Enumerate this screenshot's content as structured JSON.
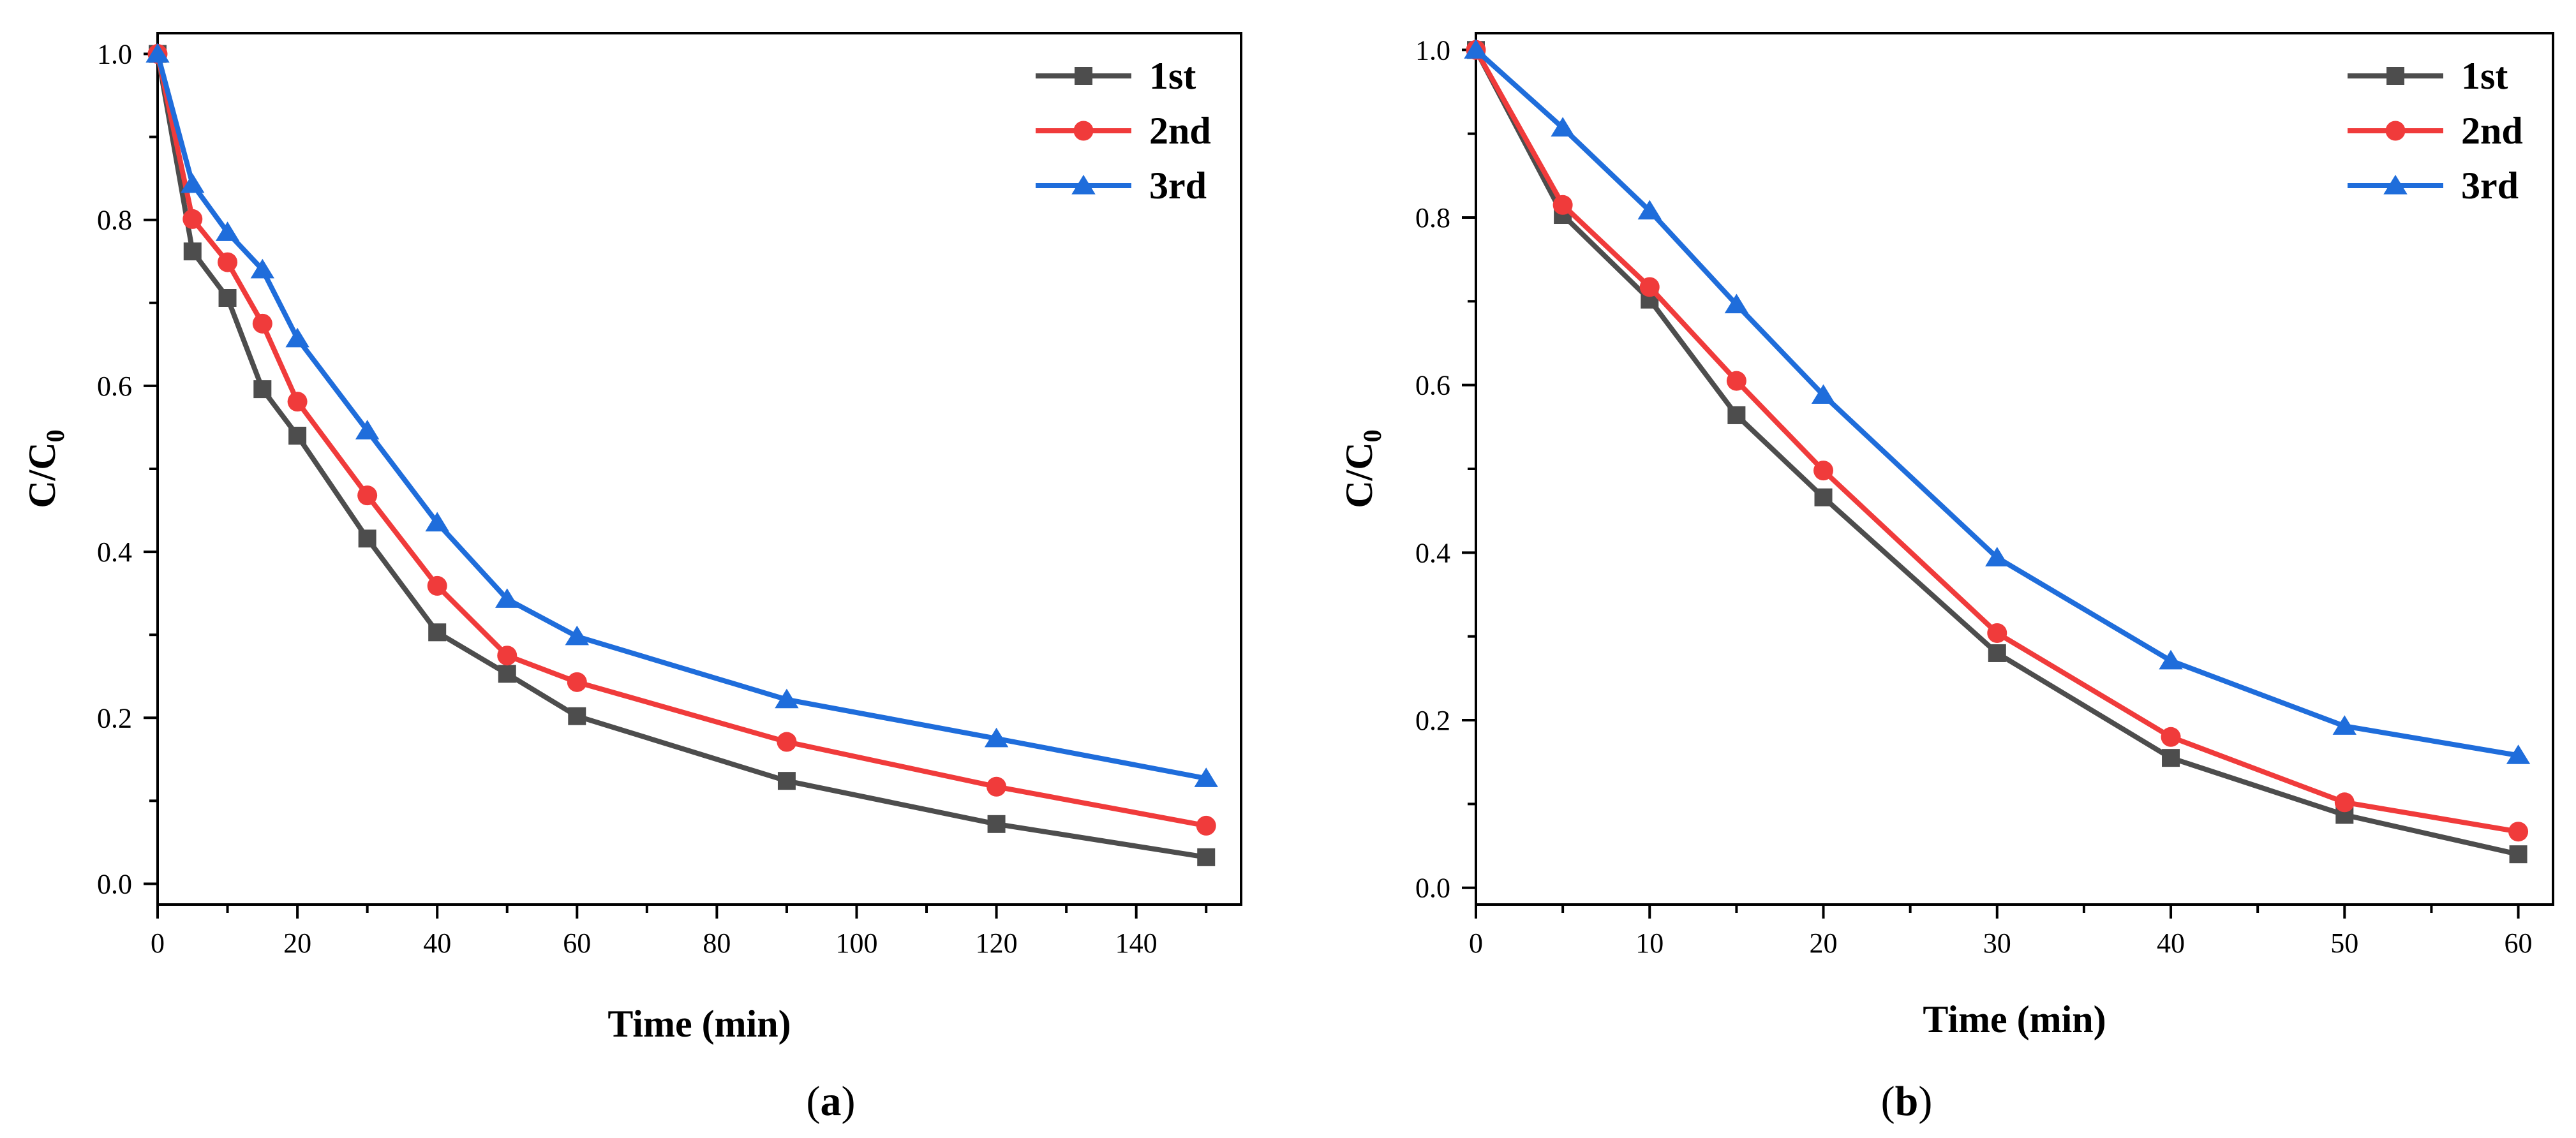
{
  "chart_data": [
    {
      "type": "line",
      "panel_label": "a",
      "xlabel": "Time (min)",
      "ylabel": "C/C",
      "ylabel_sub": "0",
      "xlim": [
        0,
        155
      ],
      "ylim": [
        -0.025,
        1.025
      ],
      "xticks": [
        0,
        20,
        40,
        60,
        80,
        100,
        120,
        140
      ],
      "yticks": [
        0.0,
        0.2,
        0.4,
        0.6,
        0.8,
        1.0
      ],
      "ytick_labels": [
        "0.0",
        "0.2",
        "0.4",
        "0.6",
        "0.8",
        "1.0"
      ],
      "x": [
        0,
        5,
        10,
        15,
        20,
        30,
        40,
        50,
        60,
        90,
        120,
        150
      ],
      "series": [
        {
          "name": "1st",
          "color": "#4d4d4d",
          "marker": "square",
          "values": [
            1.0,
            0.762,
            0.706,
            0.596,
            0.54,
            0.416,
            0.303,
            0.253,
            0.202,
            0.124,
            0.072,
            0.032
          ]
        },
        {
          "name": "2nd",
          "color": "#f03b3b",
          "marker": "circle",
          "values": [
            1.0,
            0.801,
            0.749,
            0.675,
            0.581,
            0.468,
            0.359,
            0.275,
            0.243,
            0.171,
            0.117,
            0.07
          ]
        },
        {
          "name": "3rd",
          "color": "#1f6ddb",
          "marker": "triangle",
          "values": [
            1.0,
            0.843,
            0.785,
            0.74,
            0.657,
            0.546,
            0.435,
            0.343,
            0.298,
            0.222,
            0.175,
            0.127
          ]
        }
      ],
      "legend": "top-right"
    },
    {
      "type": "line",
      "panel_label": "b",
      "xlabel": "Time (min)",
      "ylabel": "C/C",
      "ylabel_sub": "0",
      "xlim": [
        0,
        62
      ],
      "ylim": [
        -0.02,
        1.02
      ],
      "xticks": [
        0,
        10,
        20,
        30,
        40,
        50,
        60
      ],
      "yticks": [
        0.0,
        0.2,
        0.4,
        0.6,
        0.8,
        1.0
      ],
      "ytick_labels": [
        "0.0",
        "0.2",
        "0.4",
        "0.6",
        "0.8",
        "1.0"
      ],
      "x": [
        0,
        5,
        10,
        15,
        20,
        30,
        40,
        50,
        60
      ],
      "series": [
        {
          "name": "1st",
          "color": "#4d4d4d",
          "marker": "square",
          "values": [
            1.0,
            0.803,
            0.702,
            0.564,
            0.466,
            0.28,
            0.155,
            0.087,
            0.04
          ]
        },
        {
          "name": "2nd",
          "color": "#f03b3b",
          "marker": "circle",
          "values": [
            1.0,
            0.815,
            0.717,
            0.605,
            0.498,
            0.304,
            0.18,
            0.102,
            0.067
          ]
        },
        {
          "name": "3rd",
          "color": "#1f6ddb",
          "marker": "triangle",
          "values": [
            1.0,
            0.907,
            0.808,
            0.696,
            0.588,
            0.394,
            0.271,
            0.193,
            0.158
          ]
        }
      ],
      "legend": "top-right"
    }
  ]
}
